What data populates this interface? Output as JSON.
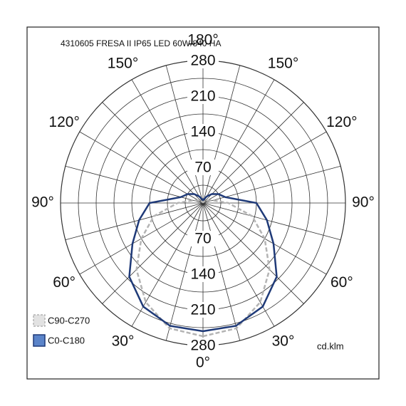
{
  "chart_data": {
    "type": "polar",
    "title": "4310605 FRESA II IP65 LED 60W/840 HA",
    "unit": "cd.klm",
    "angles": [
      0,
      15,
      30,
      45,
      60,
      75,
      90,
      105,
      120,
      135,
      150,
      165,
      180
    ],
    "series": [
      {
        "name": "C90-C270",
        "color": "#b4b4b4",
        "dashed": true,
        "values": [
          262,
          255,
          225,
          185,
          140,
          100,
          50,
          20,
          10,
          5,
          3,
          1,
          0
        ]
      },
      {
        "name": "C0-C180",
        "color": "#1f3a78",
        "dashed": false,
        "legend_fill": "#5b84c9",
        "values": [
          252,
          250,
          235,
          205,
          160,
          130,
          105,
          45,
          35,
          25,
          15,
          8,
          5
        ]
      }
    ],
    "rlim": [
      0,
      280
    ],
    "rticks": [
      70,
      140,
      210,
      280
    ],
    "minor_rticks": [
      35,
      105,
      175,
      245
    ],
    "angle_grid_step": 15,
    "angle_ticks": [
      {
        "value": 0,
        "label": "0°"
      },
      {
        "value": 30,
        "label": "30°"
      },
      {
        "value": 60,
        "label": "60°"
      },
      {
        "value": 90,
        "label": "90°"
      },
      {
        "value": 120,
        "label": "120°"
      },
      {
        "value": 150,
        "label": "150°"
      },
      {
        "value": 180,
        "label": "180°"
      }
    ],
    "legend": "bottom-left"
  }
}
